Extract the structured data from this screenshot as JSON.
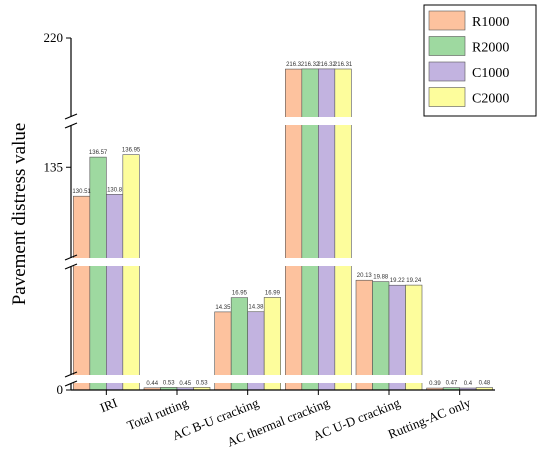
{
  "chart_data": {
    "type": "bar",
    "ylabel": "Pavement distress value",
    "categories": [
      "IRI",
      "Total rutting",
      "AC B-U cracking",
      "AC thermal cracking",
      "AC U-D cracking",
      "Rutting-AC only"
    ],
    "series": [
      {
        "name": "R1000",
        "color": "#FDC29E",
        "values": [
          130.51,
          0.44,
          14.35,
          216.3,
          20.13,
          0.39
        ],
        "labels": [
          "130.51",
          "0.44",
          "14.35",
          "216.3",
          "20.13",
          "0.39"
        ]
      },
      {
        "name": "R2000",
        "color": "#9ED9A0",
        "values": [
          136.57,
          0.53,
          16.95,
          216.32,
          19.88,
          0.47
        ],
        "labels": [
          "136.57",
          "0.53",
          "16.95",
          "216.32",
          "19.88",
          "0.47"
        ]
      },
      {
        "name": "C1000",
        "color": "#C2B3E0",
        "values": [
          130.8,
          0.45,
          14.38,
          216.32,
          19.22,
          0.4
        ],
        "labels": [
          "130.8",
          "0.45",
          "14.38",
          "216.32",
          "19.22",
          "0.4"
        ]
      },
      {
        "name": "C2000",
        "color": "#FDFD9C",
        "values": [
          136.95,
          0.53,
          16.99,
          216.31,
          19.24,
          0.48
        ],
        "labels": [
          "136.95",
          "0.53",
          "16.99",
          "216.31",
          "19.24",
          "0.48"
        ]
      }
    ],
    "y_tick_labels": [
      "0",
      "135",
      "220"
    ],
    "axis_breaks": true,
    "grid": false,
    "legend_position": "top-right"
  }
}
